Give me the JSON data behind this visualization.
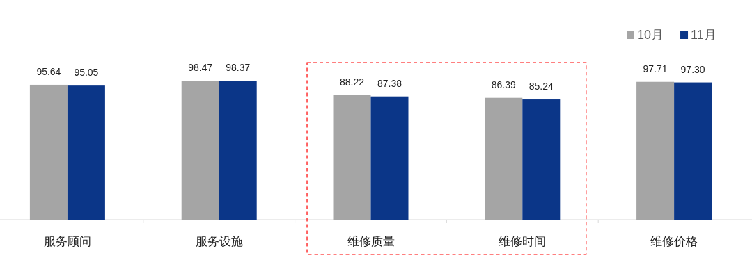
{
  "chart_data": {
    "type": "bar",
    "categories": [
      "服务顾问",
      "服务设施",
      "维修质量",
      "维修时间",
      "维修价格"
    ],
    "series": [
      {
        "name": "10月",
        "color": "#a5a5a5",
        "values": [
          95.64,
          98.47,
          88.22,
          86.39,
          97.71
        ],
        "value_labels": [
          "95.64",
          "98.47",
          "88.22",
          "86.39",
          "97.71"
        ]
      },
      {
        "name": "11月",
        "color": "#0b3688",
        "values": [
          95.05,
          98.37,
          87.38,
          85.24,
          97.3
        ],
        "value_labels": [
          "95.05",
          "98.37",
          "87.38",
          "85.24",
          "97.30"
        ]
      }
    ],
    "legend": "top right",
    "tick_labels": "x"
  }
}
